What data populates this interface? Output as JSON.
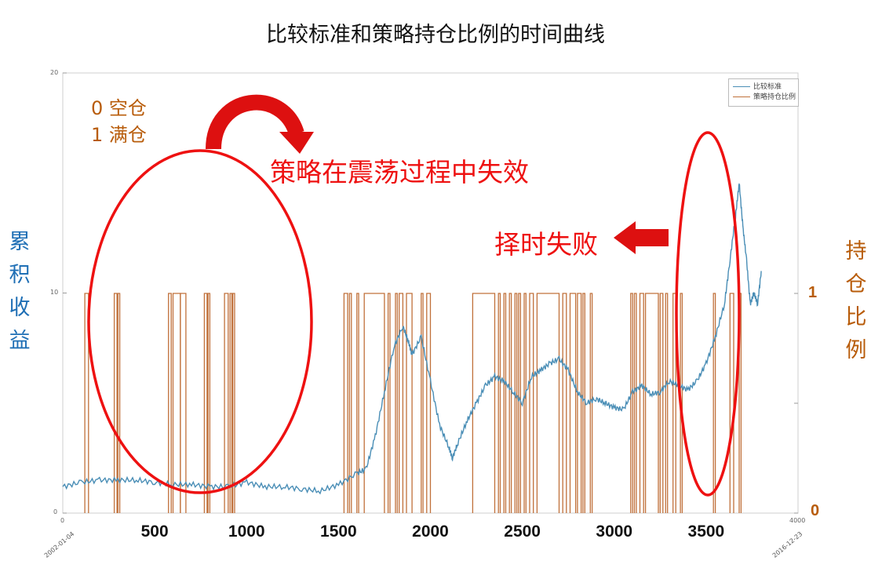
{
  "title": "比较标准和策略持仓比例的时间曲线",
  "ylabel_left": "累积收益",
  "ylabel_right": "持仓比例",
  "annotations": {
    "position_key_empty": "0 空仓",
    "position_key_full": "1 满仓",
    "strategy_fails": "策略在震荡过程中失效",
    "timing_fails": "择时失败"
  },
  "legend": [
    "比较标准",
    "策略持仓比例"
  ],
  "colors": {
    "benchmark": "#4a8eb6",
    "position": "#c0703a",
    "accent_red": "#ee1111",
    "annotation_orange": "#b85c0a",
    "left_label": "#1f6fb5"
  },
  "chart_data": {
    "type": "line",
    "xlim": [
      0,
      4000
    ],
    "ylim_left": [
      0,
      20
    ],
    "ylim_right": [
      0,
      1
    ],
    "left_ticks": [
      "0",
      "10",
      "20"
    ],
    "right_ticks": [
      "0",
      "1"
    ],
    "x_ticks_small": [
      "0",
      "4000"
    ],
    "x_ticks_large": [
      "500",
      "1000",
      "1500",
      "2000",
      "2500",
      "3000",
      "3500"
    ],
    "date_start": "2002-01-04",
    "date_end": "2016-12-23",
    "series": [
      {
        "name": "比较标准",
        "x": [
          0,
          100,
          200,
          300,
          400,
          500,
          600,
          700,
          800,
          900,
          1000,
          1100,
          1200,
          1300,
          1400,
          1500,
          1600,
          1650,
          1700,
          1750,
          1800,
          1850,
          1880,
          1900,
          1950,
          2000,
          2050,
          2100,
          2120,
          2150,
          2200,
          2250,
          2300,
          2350,
          2400,
          2450,
          2500,
          2550,
          2600,
          2650,
          2700,
          2750,
          2800,
          2850,
          2900,
          2950,
          3000,
          3050,
          3100,
          3150,
          3200,
          3250,
          3300,
          3350,
          3400,
          3450,
          3500,
          3550,
          3600,
          3630,
          3660,
          3680,
          3700,
          3720,
          3740,
          3760,
          3780,
          3800
        ],
        "values": [
          1.2,
          1.4,
          1.5,
          1.5,
          1.5,
          1.4,
          1.3,
          1.3,
          1.2,
          1.2,
          1.4,
          1.2,
          1.2,
          1.1,
          1.0,
          1.3,
          1.8,
          2.0,
          3.5,
          5.5,
          7.5,
          8.5,
          7.8,
          7.2,
          8.0,
          6.0,
          4.0,
          3.0,
          2.5,
          3.2,
          4.2,
          5.0,
          5.8,
          6.2,
          6.0,
          5.5,
          5.0,
          6.2,
          6.5,
          6.8,
          7.0,
          6.5,
          5.5,
          5.0,
          5.2,
          5.0,
          4.8,
          4.7,
          5.5,
          5.8,
          5.4,
          5.5,
          6.0,
          5.8,
          5.6,
          6.0,
          6.8,
          8.0,
          9.5,
          11.5,
          13.5,
          15.0,
          13.0,
          11.5,
          9.5,
          10.0,
          9.5,
          11.0
        ]
      },
      {
        "name": "策略持仓比例",
        "step": true,
        "intervals_full": [
          [
            120,
            140
          ],
          [
            280,
            295
          ],
          [
            300,
            310
          ],
          [
            575,
            590
          ],
          [
            600,
            640
          ],
          [
            640,
            670
          ],
          [
            770,
            785
          ],
          [
            790,
            800
          ],
          [
            880,
            900
          ],
          [
            910,
            920
          ],
          [
            925,
            935
          ],
          [
            1530,
            1550
          ],
          [
            1560,
            1570
          ],
          [
            1600,
            1610
          ],
          [
            1640,
            1750
          ],
          [
            1770,
            1780
          ],
          [
            1810,
            1820
          ],
          [
            1830,
            1850
          ],
          [
            1870,
            1900
          ],
          [
            1950,
            1960
          ],
          [
            1980,
            2000
          ],
          [
            2230,
            2350
          ],
          [
            2370,
            2380
          ],
          [
            2400,
            2410
          ],
          [
            2430,
            2440
          ],
          [
            2460,
            2470
          ],
          [
            2480,
            2490
          ],
          [
            2510,
            2520
          ],
          [
            2540,
            2560
          ],
          [
            2580,
            2700
          ],
          [
            2720,
            2740
          ],
          [
            2760,
            2790
          ],
          [
            2800,
            2820
          ],
          [
            2830,
            2840
          ],
          [
            2870,
            2880
          ],
          [
            3090,
            3100
          ],
          [
            3110,
            3120
          ],
          [
            3140,
            3160
          ],
          [
            3170,
            3240
          ],
          [
            3250,
            3265
          ],
          [
            3280,
            3290
          ],
          [
            3320,
            3335
          ],
          [
            3360,
            3370
          ],
          [
            3540,
            3550
          ],
          [
            3630,
            3650
          ],
          [
            3680,
            3690
          ]
        ]
      }
    ]
  }
}
